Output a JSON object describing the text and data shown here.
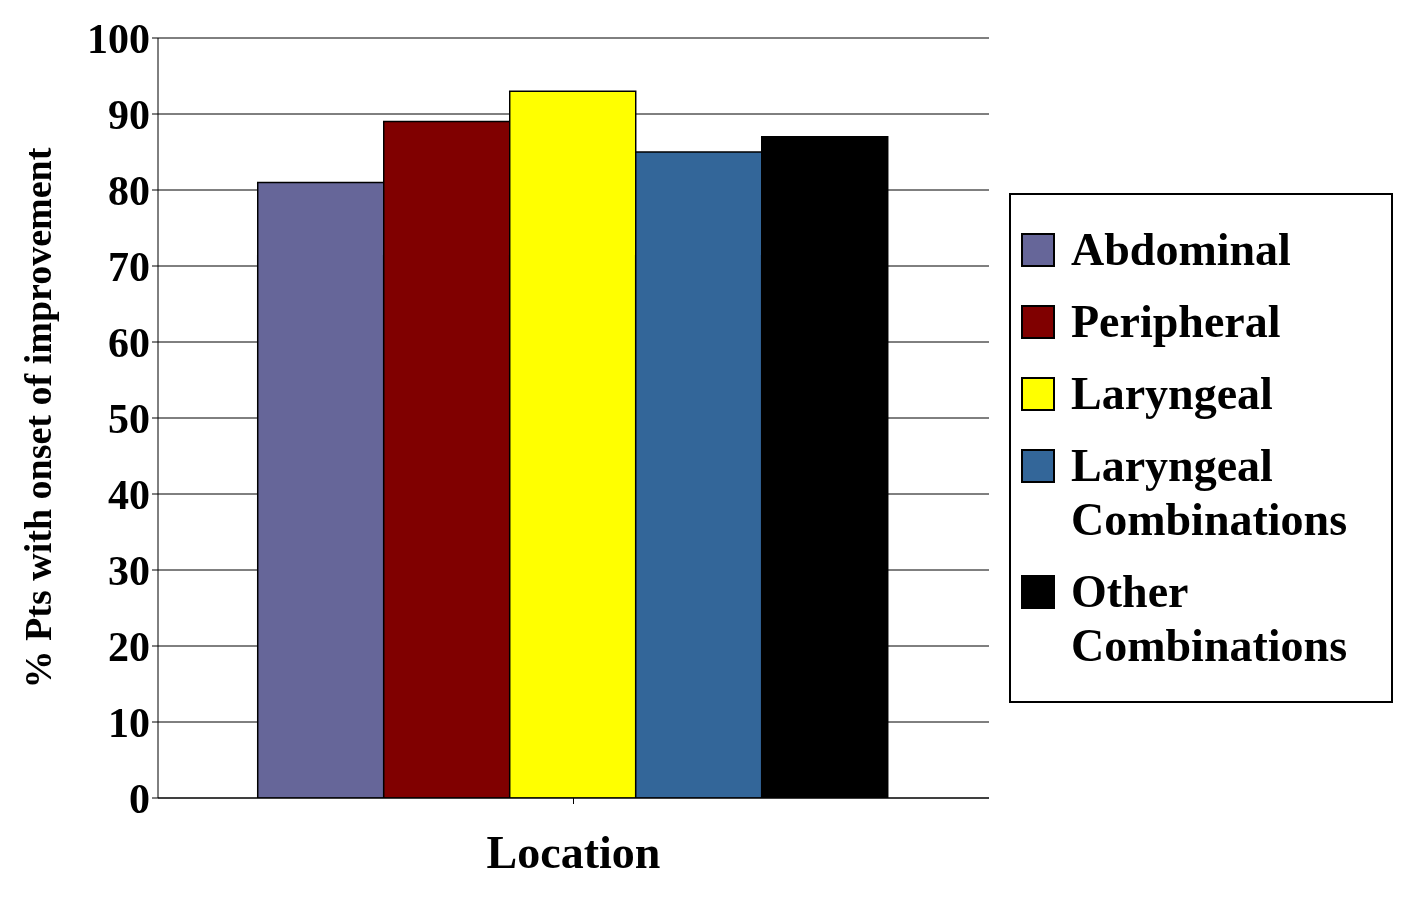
{
  "chart_data": {
    "type": "bar",
    "xlabel": "Location",
    "ylabel": "% Pts with onset of improvement",
    "categories": [
      null
    ],
    "series": [
      {
        "name": "Abdominal",
        "color": "#666699",
        "values": [
          81
        ]
      },
      {
        "name": "Peripheral",
        "color": "#800000",
        "values": [
          89
        ]
      },
      {
        "name": "Laryngeal",
        "color": "#ffff00",
        "values": [
          93
        ]
      },
      {
        "name": "Laryngeal Combinations",
        "color": "#336699",
        "values": [
          85
        ]
      },
      {
        "name": "Other Combinations",
        "color": "#000000",
        "values": [
          87
        ]
      }
    ],
    "ylim": [
      0,
      100
    ],
    "yticks": [
      0,
      10,
      20,
      30,
      40,
      50,
      60,
      70,
      80,
      90,
      100
    ],
    "grid": "y",
    "legend": "right"
  }
}
